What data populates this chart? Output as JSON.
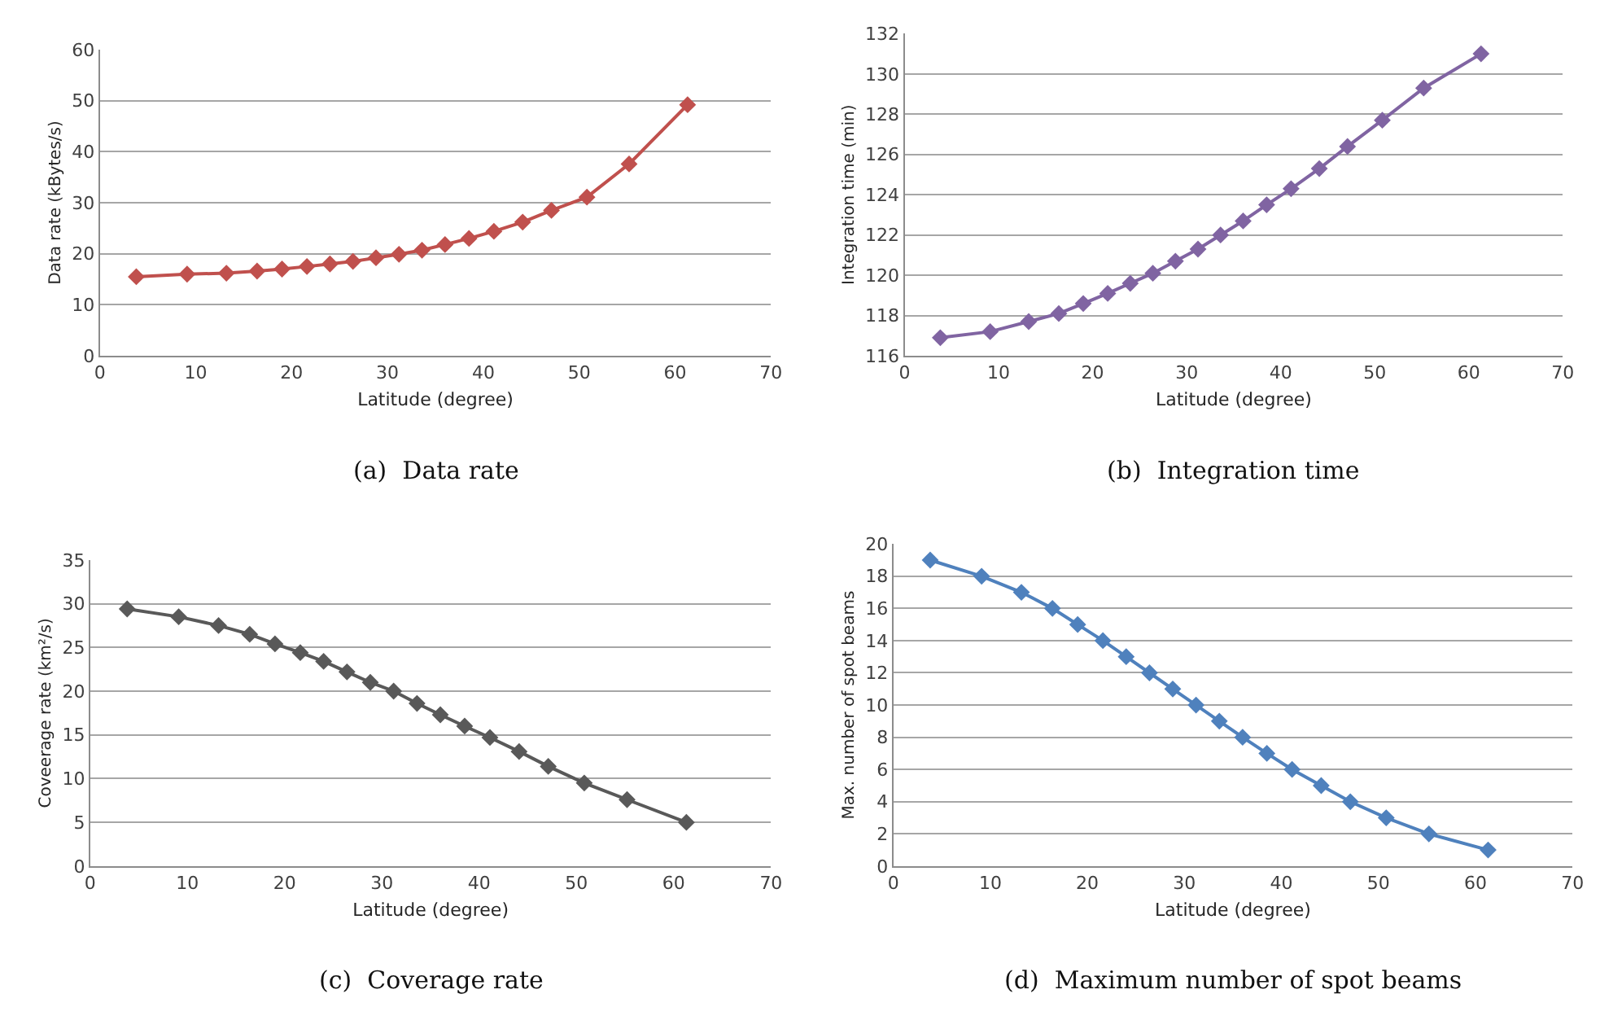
{
  "chart_data": [
    {
      "type": "line",
      "xlabel": "Latitude (degree)",
      "ylabel": "Data rate (kBytes/s)",
      "annotations": [
        "(a)  Data rate"
      ],
      "x": [
        3.8,
        9.1,
        13.2,
        16.4,
        19,
        21.6,
        24,
        26.4,
        28.8,
        31.2,
        33.6,
        36,
        38.5,
        41.1,
        44.1,
        47.1,
        50.8,
        55.2,
        61.3
      ],
      "series": [
        {
          "color": "#c0504d",
          "values": [
            15.5,
            16,
            16.2,
            16.6,
            17,
            17.5,
            18,
            18.5,
            19.2,
            19.9,
            20.7,
            21.8,
            23,
            24.4,
            26.2,
            28.5,
            31.1,
            37.6,
            49.2
          ]
        }
      ],
      "xlim": [
        0,
        70
      ],
      "xticks": [
        0,
        10,
        20,
        30,
        40,
        50,
        60,
        70
      ],
      "ylim": [
        0,
        60
      ],
      "yticks": [
        0,
        10,
        20,
        30,
        40,
        50,
        60
      ],
      "grid": "y",
      "marker": "diamond",
      "line_style": "solid"
    },
    {
      "type": "line",
      "xlabel": "Latitude (degree)",
      "ylabel": "Integration time (min)",
      "annotations": [
        "(b)  Integration time"
      ],
      "x": [
        3.8,
        9.1,
        13.2,
        16.4,
        19,
        21.6,
        24,
        26.4,
        28.8,
        31.2,
        33.6,
        36,
        38.5,
        41.1,
        44.1,
        47.1,
        50.8,
        55.2,
        61.3
      ],
      "series": [
        {
          "color": "#8064a2",
          "values": [
            116.9,
            117.2,
            117.7,
            118.1,
            118.6,
            119.1,
            119.6,
            120.1,
            120.7,
            121.3,
            122,
            122.7,
            123.5,
            124.3,
            125.3,
            126.4,
            127.7,
            129.3,
            131
          ]
        }
      ],
      "xlim": [
        0,
        70
      ],
      "xticks": [
        0,
        10,
        20,
        30,
        40,
        50,
        60,
        70
      ],
      "ylim": [
        116,
        132
      ],
      "yticks": [
        116,
        118,
        120,
        122,
        124,
        126,
        128,
        130,
        132
      ],
      "grid": "y",
      "marker": "diamond",
      "line_style": "solid"
    },
    {
      "type": "line",
      "xlabel": "Latitude (degree)",
      "ylabel": "Coveerage rate (km²/s)",
      "annotations": [
        "(c)  Coverage rate"
      ],
      "x": [
        3.8,
        9.1,
        13.2,
        16.4,
        19,
        21.6,
        24,
        26.4,
        28.8,
        31.2,
        33.6,
        36,
        38.5,
        41.1,
        44.1,
        47.1,
        50.8,
        55.2,
        61.3
      ],
      "series": [
        {
          "color": "#595959",
          "values": [
            29.4,
            28.5,
            27.5,
            26.5,
            25.4,
            24.4,
            23.4,
            22.2,
            21,
            20,
            18.6,
            17.3,
            16,
            14.7,
            13.1,
            11.4,
            9.5,
            7.6,
            5
          ]
        }
      ],
      "xlim": [
        0,
        70
      ],
      "xticks": [
        0,
        10,
        20,
        30,
        40,
        50,
        60,
        70
      ],
      "ylim": [
        0,
        35
      ],
      "yticks": [
        0,
        5,
        10,
        15,
        20,
        25,
        30,
        35
      ],
      "grid": "y",
      "marker": "diamond",
      "line_style": "solid"
    },
    {
      "type": "line",
      "xlabel": "Latitude (degree)",
      "ylabel": "Max. number of spot beams",
      "annotations": [
        "(d)  Maximum number of spot beams"
      ],
      "x": [
        3.8,
        9.1,
        13.2,
        16.4,
        19,
        21.6,
        24,
        26.4,
        28.8,
        31.2,
        33.6,
        36,
        38.5,
        41.1,
        44.1,
        47.1,
        50.8,
        55.2,
        61.3
      ],
      "series": [
        {
          "color": "#4f81bd",
          "values": [
            19,
            18,
            17,
            16,
            15,
            14,
            13,
            12,
            11,
            10,
            9,
            8,
            7,
            6,
            5,
            4,
            3,
            2,
            1
          ]
        }
      ],
      "xlim": [
        0,
        70
      ],
      "xticks": [
        0,
        10,
        20,
        30,
        40,
        50,
        60,
        70
      ],
      "ylim": [
        0,
        20
      ],
      "yticks": [
        0,
        2,
        4,
        6,
        8,
        10,
        12,
        14,
        16,
        18,
        20
      ],
      "grid": "y",
      "marker": "diamond",
      "line_style": "solid"
    }
  ]
}
